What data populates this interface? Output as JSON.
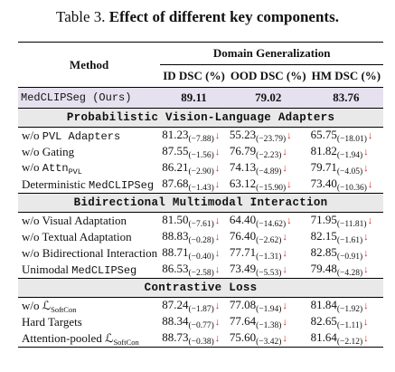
{
  "caption": {
    "label": "Table 3.",
    "title": "Effect of different key components."
  },
  "header": {
    "method": "Method",
    "group": "Domain Generalization",
    "cols": [
      "ID DSC (%)",
      "OOD DSC (%)",
      "HM DSC (%)"
    ]
  },
  "ours": {
    "method": "MedCLIPSeg (Ours)",
    "values": [
      "89.11",
      "79.02",
      "83.76"
    ]
  },
  "arrow_color": "#d12a2a",
  "highlight_color": "#e6e1ee",
  "section_color": "#e9e9e9",
  "sections": [
    {
      "title": "Probabilistic Vision-Language Adapters",
      "rows": [
        {
          "method": "w/o PVL Adapters",
          "cells": [
            [
              "81.23",
              "(−7.88)"
            ],
            [
              "55.23",
              "(−23.79)"
            ],
            [
              "65.75",
              "(−18.01)"
            ]
          ]
        },
        {
          "method": "w/o Gating",
          "cells": [
            [
              "87.55",
              "(−1.56)"
            ],
            [
              "76.79",
              "(−2.23)"
            ],
            [
              "81.82",
              "(−1.94)"
            ]
          ]
        },
        {
          "method": "w/o Attn",
          "method_sub": "PVL",
          "cells": [
            [
              "86.21",
              "(−2.90)"
            ],
            [
              "74.13",
              "(−4.89)"
            ],
            [
              "79.71",
              "(−4.05)"
            ]
          ]
        },
        {
          "method": "Deterministic MedCLIPSeg",
          "cells": [
            [
              "87.68",
              "(−1.43)"
            ],
            [
              "63.12",
              "(−15.90)"
            ],
            [
              "73.40",
              "(−10.36)"
            ]
          ]
        }
      ]
    },
    {
      "title": "Bidirectional Multimodal Interaction",
      "rows": [
        {
          "method": "w/o Visual Adaptation",
          "cells": [
            [
              "81.50",
              "(−7.61)"
            ],
            [
              "64.40",
              "(−14.62)"
            ],
            [
              "71.95",
              "(−11.81)"
            ]
          ]
        },
        {
          "method": "w/o Textual Adaptation",
          "cells": [
            [
              "88.83",
              "(−0.28)"
            ],
            [
              "76.40",
              "(−2.62)"
            ],
            [
              "82.15",
              "(−1.61)"
            ]
          ]
        },
        {
          "method": "w/o Bidirectional Interaction",
          "cells": [
            [
              "88.71",
              "(−0.40)"
            ],
            [
              "77.71",
              "(−1.31)"
            ],
            [
              "82.85",
              "(−0.91)"
            ]
          ]
        },
        {
          "method": "Unimodal MedCLIPSeg",
          "cells": [
            [
              "86.53",
              "(−2.58)"
            ],
            [
              "73.49",
              "(−5.53)"
            ],
            [
              "79.48",
              "(−4.28)"
            ]
          ]
        }
      ]
    },
    {
      "title": "Contrastive Loss",
      "rows": [
        {
          "method": "w/o ℒ",
          "method_sub": "SoftCon",
          "cells": [
            [
              "87.24",
              "(−1.87)"
            ],
            [
              "77.08",
              "(−1.94)"
            ],
            [
              "81.84",
              "(−1.92)"
            ]
          ]
        },
        {
          "method": "Hard Targets",
          "cells": [
            [
              "88.34",
              "(−0.77)"
            ],
            [
              "77.64",
              "(−1.38)"
            ],
            [
              "82.65",
              "(−1.11)"
            ]
          ]
        },
        {
          "method": "Attention-pooled ℒ",
          "method_sub": "SoftCon",
          "cells": [
            [
              "88.73",
              "(−0.38)"
            ],
            [
              "75.60",
              "(−3.42)"
            ],
            [
              "81.64",
              "(−2.12)"
            ]
          ]
        }
      ]
    }
  ]
}
